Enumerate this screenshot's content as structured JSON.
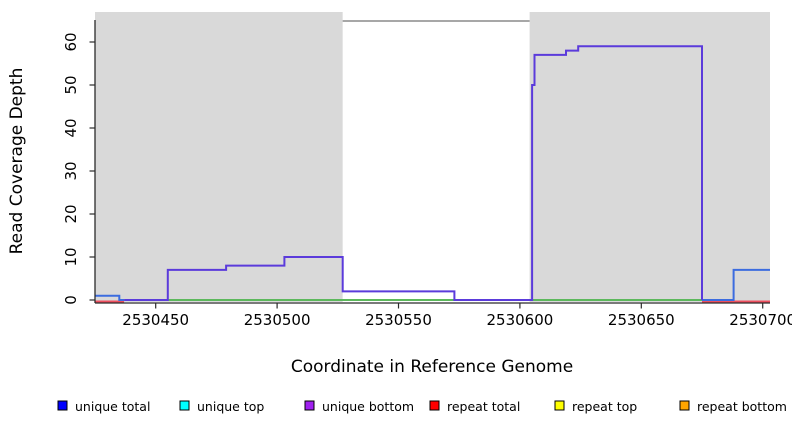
{
  "figure": {
    "xlabel": "Coordinate in Reference Genome",
    "ylabel": "Read Coverage Depth"
  },
  "legend": {
    "items": [
      {
        "label": "unique total",
        "color": "#0000ff"
      },
      {
        "label": "unique top",
        "color": "#00ffff"
      },
      {
        "label": "unique bottom",
        "color": "#a020f0"
      },
      {
        "label": "repeat total",
        "color": "#ff0000"
      },
      {
        "label": "repeat top",
        "color": "#ffff00"
      },
      {
        "label": "repeat bottom",
        "color": "#ffa500"
      }
    ]
  },
  "chart_data": {
    "type": "line",
    "style": "step",
    "title": "",
    "xlabel": "Coordinate in Reference Genome",
    "ylabel": "Read Coverage Depth",
    "xlim": [
      2530425,
      2530703
    ],
    "ylim": [
      0,
      66
    ],
    "x_ticks": [
      2530450,
      2530500,
      2530550,
      2530600,
      2530650,
      2530700
    ],
    "y_ticks": [
      0,
      10,
      20,
      30,
      40,
      50,
      60
    ],
    "grid": false,
    "legend_position": "bottom",
    "panel_shade_color": "#d9d9d9",
    "shaded_regions": [
      {
        "x0": 2530425,
        "x1": 2530527
      },
      {
        "x0": 2530604,
        "x1": 2530703
      }
    ],
    "series": [
      {
        "name": "repeat total",
        "color": "#ee4f5f",
        "depth": 0,
        "segments": [
          [
            [
              2530425,
              0
            ],
            [
              2530437,
              0
            ]
          ],
          [
            [
              2530675,
              0
            ],
            [
              2530703,
              0
            ]
          ]
        ]
      },
      {
        "name": "zero baseline (green, not in legend)",
        "color": "#5cb85c",
        "depth": 0,
        "segments": [
          [
            [
              2530455,
              0
            ],
            [
              2530675,
              0
            ]
          ]
        ]
      },
      {
        "name": "unique total",
        "color": "#3c6cdf",
        "segments": [
          [
            [
              2530425,
              1
            ],
            [
              2530435,
              1
            ],
            [
              2530435,
              0
            ],
            [
              2530437,
              0
            ]
          ],
          [
            [
              2530675,
              0
            ],
            [
              2530688,
              0
            ],
            [
              2530688,
              7
            ],
            [
              2530703,
              7
            ]
          ]
        ]
      },
      {
        "name": "unique bottom",
        "color": "#5b3bdb",
        "segments": [
          [
            [
              2530437,
              0
            ],
            [
              2530455,
              0
            ],
            [
              2530455,
              7
            ],
            [
              2530479,
              7
            ],
            [
              2530479,
              8
            ],
            [
              2530503,
              8
            ],
            [
              2530503,
              10
            ],
            [
              2530527,
              10
            ],
            [
              2530527,
              2
            ],
            [
              2530573,
              2
            ],
            [
              2530573,
              0
            ],
            [
              2530605,
              0
            ],
            [
              2530605,
              50
            ],
            [
              2530606,
              50
            ],
            [
              2530606,
              57
            ],
            [
              2530619,
              57
            ],
            [
              2530619,
              58
            ],
            [
              2530624,
              58
            ],
            [
              2530624,
              59
            ],
            [
              2530675,
              59
            ],
            [
              2530675,
              0
            ]
          ]
        ]
      },
      {
        "name": "unique top",
        "segments": [],
        "note": "not separately visible (overlaps other lines)"
      },
      {
        "name": "repeat top",
        "segments": [],
        "note": "not separately visible (overlaps other lines)"
      },
      {
        "name": "repeat bottom",
        "segments": [],
        "note": "not separately visible (overlaps other lines)"
      }
    ]
  }
}
